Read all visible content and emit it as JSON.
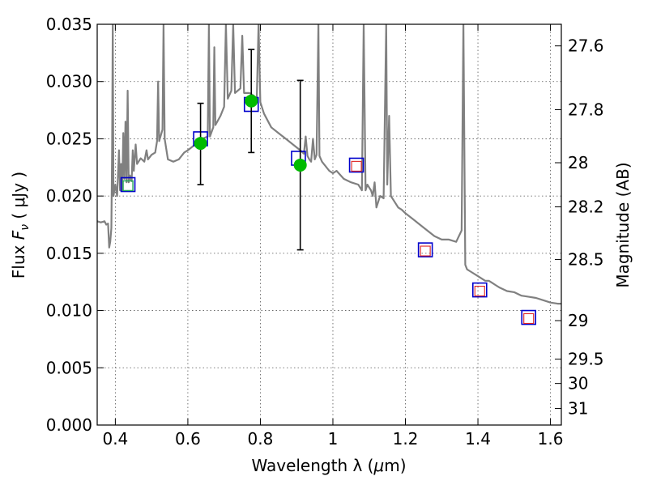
{
  "chart_data": {
    "type": "scatter",
    "title": "",
    "xlabel": "Wavelength  λ (μm)",
    "ylabel": "Flux  F_ν  ( μJy )",
    "ylabel_parts": {
      "prefix": "Flux  ",
      "symbol": "F",
      "subscript": "ν",
      "suffix": "  ( μJy )"
    },
    "xlabel_parts": {
      "prefix": "Wavelength  λ (",
      "unit_symbol": "μ",
      "unit_rest": "m)"
    },
    "y2label": "Magnitude (AB)",
    "xlim": [
      0.35,
      1.63
    ],
    "ylim": [
      0.0,
      0.035
    ],
    "grid": true,
    "x_ticks": [
      0.4,
      0.6,
      0.8,
      1.0,
      1.2,
      1.4,
      1.6
    ],
    "x_tick_labels": [
      "0.4",
      "0.6",
      "0.8",
      "1",
      "1.2",
      "1.4",
      "1.6"
    ],
    "y_ticks": [
      0.0,
      0.005,
      0.01,
      0.015,
      0.02,
      0.025,
      0.03,
      0.035
    ],
    "y_tick_labels": [
      "0.000",
      "0.005",
      "0.010",
      "0.015",
      "0.020",
      "0.025",
      "0.030",
      "0.035"
    ],
    "y2_ticks": [
      {
        "label": "27.6",
        "mag": 27.6
      },
      {
        "label": "27.8",
        "mag": 27.8
      },
      {
        "label": "28",
        "mag": 28.0
      },
      {
        "label": "28.2",
        "mag": 28.2
      },
      {
        "label": "28.5",
        "mag": 28.5
      },
      {
        "label": "29",
        "mag": 29.0
      },
      {
        "label": "29.5",
        "mag": 29.5
      },
      {
        "label": "30",
        "mag": 30.0
      },
      {
        "label": "31",
        "mag": 31.0
      }
    ],
    "colors": {
      "spectrum": "#808080",
      "model_box": "#0000cc",
      "observed_box": "#dd2222",
      "upper_limit_box": "#22aa55",
      "detection_marker": "#00bb00",
      "error_bar": "#000000",
      "grid": "#555555"
    },
    "series": [
      {
        "role": "spectrum",
        "points": [
          [
            0.35,
            0.0178
          ],
          [
            0.36,
            0.0177
          ],
          [
            0.37,
            0.0178
          ],
          [
            0.375,
            0.0175
          ],
          [
            0.38,
            0.0176
          ],
          [
            0.383,
            0.0155
          ],
          [
            0.386,
            0.016
          ],
          [
            0.389,
            0.0172
          ],
          [
            0.391,
            0.024
          ],
          [
            0.393,
            0.035
          ],
          [
            0.395,
            0.02
          ],
          [
            0.4,
            0.021
          ],
          [
            0.405,
            0.02
          ],
          [
            0.41,
            0.024
          ],
          [
            0.413,
            0.0205
          ],
          [
            0.416,
            0.0228
          ],
          [
            0.419,
            0.0205
          ],
          [
            0.422,
            0.0255
          ],
          [
            0.425,
            0.0215
          ],
          [
            0.428,
            0.0265
          ],
          [
            0.431,
            0.0212
          ],
          [
            0.434,
            0.0292
          ],
          [
            0.437,
            0.0212
          ],
          [
            0.44,
            0.0218
          ],
          [
            0.445,
            0.0213
          ],
          [
            0.448,
            0.024
          ],
          [
            0.451,
            0.0222
          ],
          [
            0.456,
            0.0245
          ],
          [
            0.46,
            0.0228
          ],
          [
            0.47,
            0.0233
          ],
          [
            0.48,
            0.023
          ],
          [
            0.486,
            0.024
          ],
          [
            0.49,
            0.0232
          ],
          [
            0.5,
            0.0236
          ],
          [
            0.51,
            0.0238
          ],
          [
            0.515,
            0.0248
          ],
          [
            0.518,
            0.03
          ],
          [
            0.521,
            0.0248
          ],
          [
            0.53,
            0.0258
          ],
          [
            0.533,
            0.035
          ],
          [
            0.536,
            0.025
          ],
          [
            0.545,
            0.0232
          ],
          [
            0.56,
            0.023
          ],
          [
            0.575,
            0.0232
          ],
          [
            0.59,
            0.0238
          ],
          [
            0.6,
            0.024
          ],
          [
            0.62,
            0.0245
          ],
          [
            0.64,
            0.025
          ],
          [
            0.655,
            0.0252
          ],
          [
            0.658,
            0.035
          ],
          [
            0.661,
            0.0252
          ],
          [
            0.67,
            0.026
          ],
          [
            0.673,
            0.033
          ],
          [
            0.676,
            0.0262
          ],
          [
            0.69,
            0.027
          ],
          [
            0.7,
            0.0278
          ],
          [
            0.705,
            0.035
          ],
          [
            0.71,
            0.0285
          ],
          [
            0.72,
            0.0292
          ],
          [
            0.725,
            0.035
          ],
          [
            0.73,
            0.029
          ],
          [
            0.745,
            0.0294
          ],
          [
            0.75,
            0.034
          ],
          [
            0.755,
            0.029
          ],
          [
            0.77,
            0.029
          ],
          [
            0.78,
            0.0288
          ],
          [
            0.79,
            0.0285
          ],
          [
            0.795,
            0.035
          ],
          [
            0.8,
            0.0282
          ],
          [
            0.81,
            0.0272
          ],
          [
            0.83,
            0.026
          ],
          [
            0.85,
            0.0255
          ],
          [
            0.87,
            0.025
          ],
          [
            0.89,
            0.0245
          ],
          [
            0.91,
            0.024
          ],
          [
            0.92,
            0.0237
          ],
          [
            0.925,
            0.0252
          ],
          [
            0.93,
            0.0235
          ],
          [
            0.935,
            0.0232
          ],
          [
            0.94,
            0.023
          ],
          [
            0.945,
            0.025
          ],
          [
            0.95,
            0.0232
          ],
          [
            0.955,
            0.0236
          ],
          [
            0.96,
            0.035
          ],
          [
            0.963,
            0.0235
          ],
          [
            0.97,
            0.023
          ],
          [
            0.99,
            0.0222
          ],
          [
            1.0,
            0.022
          ],
          [
            1.01,
            0.0222
          ],
          [
            1.03,
            0.0215
          ],
          [
            1.05,
            0.0212
          ],
          [
            1.07,
            0.021
          ],
          [
            1.08,
            0.0205
          ],
          [
            1.085,
            0.035
          ],
          [
            1.09,
            0.0205
          ],
          [
            1.095,
            0.021
          ],
          [
            1.105,
            0.0205
          ],
          [
            1.11,
            0.02
          ],
          [
            1.115,
            0.0212
          ],
          [
            1.12,
            0.019
          ],
          [
            1.13,
            0.02
          ],
          [
            1.14,
            0.0198
          ],
          [
            1.147,
            0.035
          ],
          [
            1.15,
            0.021
          ],
          [
            1.155,
            0.027
          ],
          [
            1.16,
            0.02
          ],
          [
            1.17,
            0.0195
          ],
          [
            1.18,
            0.019
          ],
          [
            1.19,
            0.0188
          ],
          [
            1.2,
            0.0185
          ],
          [
            1.22,
            0.018
          ],
          [
            1.24,
            0.0175
          ],
          [
            1.26,
            0.017
          ],
          [
            1.28,
            0.0165
          ],
          [
            1.3,
            0.0162
          ],
          [
            1.32,
            0.0162
          ],
          [
            1.34,
            0.016
          ],
          [
            1.355,
            0.017
          ],
          [
            1.36,
            0.035
          ],
          [
            1.365,
            0.014
          ],
          [
            1.37,
            0.0136
          ],
          [
            1.38,
            0.0134
          ],
          [
            1.4,
            0.013
          ],
          [
            1.42,
            0.0126
          ],
          [
            1.43,
            0.0126
          ],
          [
            1.44,
            0.0124
          ],
          [
            1.45,
            0.0122
          ],
          [
            1.46,
            0.012
          ],
          [
            1.48,
            0.0117
          ],
          [
            1.5,
            0.0116
          ],
          [
            1.52,
            0.0113
          ],
          [
            1.54,
            0.0112
          ],
          [
            1.56,
            0.0111
          ],
          [
            1.58,
            0.0109
          ],
          [
            1.6,
            0.0107
          ],
          [
            1.62,
            0.0106
          ],
          [
            1.63,
            0.0106
          ]
        ]
      },
      {
        "role": "model_photometry",
        "points": [
          [
            0.435,
            0.021
          ],
          [
            0.635,
            0.025
          ],
          [
            0.775,
            0.028
          ],
          [
            0.905,
            0.0233
          ],
          [
            1.065,
            0.0227
          ],
          [
            1.255,
            0.0153
          ],
          [
            1.405,
            0.0118
          ],
          [
            1.54,
            0.0094
          ]
        ]
      },
      {
        "role": "observed_photometry",
        "points": [
          [
            1.065,
            0.0226
          ],
          [
            1.255,
            0.0152
          ],
          [
            1.405,
            0.0117
          ],
          [
            1.54,
            0.0093
          ]
        ]
      },
      {
        "role": "upper_limit",
        "points": [
          [
            0.435,
            0.0209
          ]
        ]
      },
      {
        "role": "detection",
        "points": [
          {
            "x": 0.635,
            "y": 0.0246,
            "ylow": 0.021,
            "yhigh": 0.0281
          },
          {
            "x": 0.775,
            "y": 0.0283,
            "ylow": 0.0238,
            "yhigh": 0.0328
          },
          {
            "x": 0.91,
            "y": 0.0227,
            "ylow": 0.0153,
            "yhigh": 0.0301
          }
        ]
      }
    ]
  }
}
